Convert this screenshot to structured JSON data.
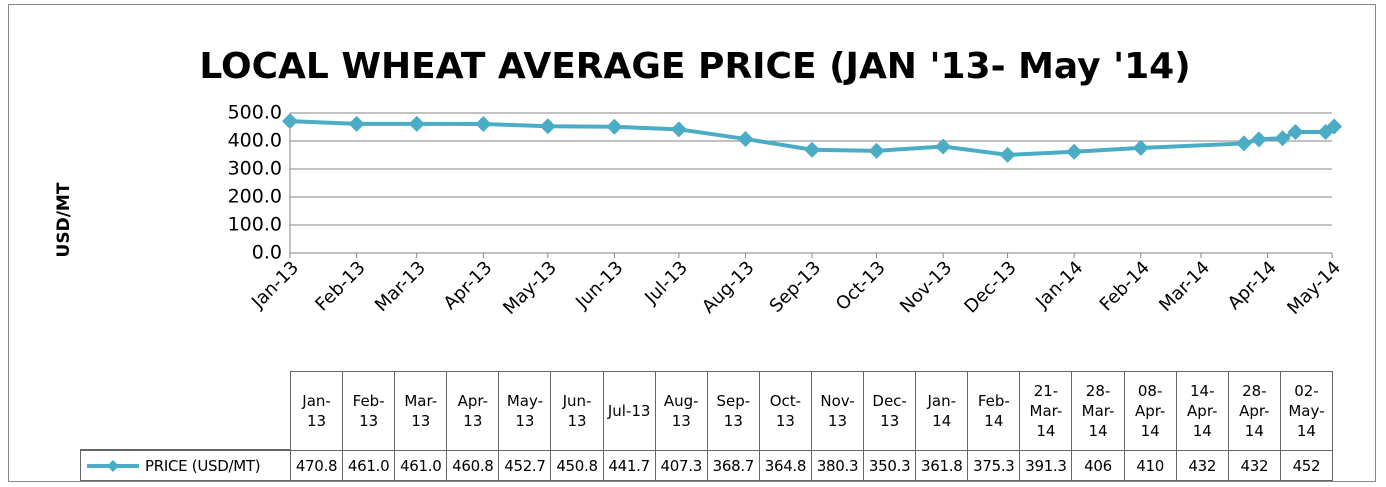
{
  "chart_data": {
    "type": "line",
    "title": "LOCAL WHEAT AVERAGE PRICE (JAN '13- May '14)",
    "y_label": "USD/MT",
    "categories": [
      "Jan-13",
      "Feb-13",
      "Mar-13",
      "Apr-13",
      "May-13",
      "Jun-13",
      "Jul-13",
      "Aug-13",
      "Sep-13",
      "Oct-13",
      "Nov-13",
      "Dec-13",
      "Jan-14",
      "Feb-14",
      "21-Mar-14",
      "28-Mar-14",
      "08-Apr-14",
      "14-Apr-14",
      "28-Apr-14",
      "02-May-14"
    ],
    "series": [
      {
        "name": "PRICE (USD/MT)",
        "color": "#4bacc6",
        "values": [
          470.8,
          461.0,
          461.0,
          460.8,
          452.7,
          450.8,
          441.7,
          407.3,
          368.7,
          364.8,
          380.3,
          350.3,
          361.8,
          375.3,
          391.3,
          406,
          410,
          432,
          432,
          452
        ],
        "value_labels": [
          "470.8",
          "461.0",
          "461.0",
          "460.8",
          "452.7",
          "450.8",
          "441.7",
          "407.3",
          "368.7",
          "364.8",
          "380.3",
          "350.3",
          "361.8",
          "375.3",
          "391.3",
          "406",
          "410",
          "432",
          "432",
          "452"
        ]
      }
    ],
    "xticks": [
      "Jan-13",
      "Feb-13",
      "Mar-13",
      "Apr-13",
      "May-13",
      "Jun-13",
      "Jul-13",
      "Aug-13",
      "Sep-13",
      "Oct-13",
      "Nov-13",
      "Dec-13",
      "Jan-14",
      "Feb-14",
      "Mar-14",
      "Apr-14",
      "May-14"
    ],
    "ylim": [
      0,
      500
    ],
    "yticks": [
      {
        "value": 0,
        "label": "0.0"
      },
      {
        "value": 100,
        "label": "100.0"
      },
      {
        "value": 200,
        "label": "200.0"
      },
      {
        "value": 300,
        "label": "300.0"
      },
      {
        "value": 400,
        "label": "400.0"
      },
      {
        "value": 500,
        "label": "500.0"
      }
    ],
    "grid": true
  }
}
